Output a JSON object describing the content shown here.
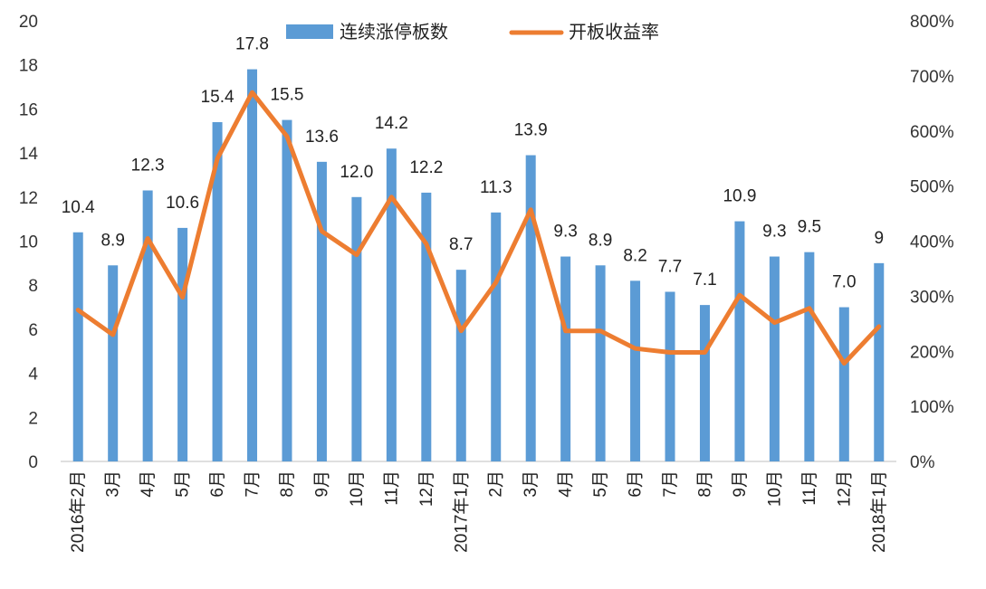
{
  "chart_data": {
    "type": "bar+line",
    "title": "",
    "categories": [
      "2016年2月",
      "3月",
      "4月",
      "5月",
      "6月",
      "7月",
      "8月",
      "9月",
      "10月",
      "11月",
      "12月",
      "2017年1月",
      "2月",
      "3月",
      "4月",
      "5月",
      "6月",
      "7月",
      "8月",
      "9月",
      "10月",
      "11月",
      "12月",
      "2018年1月"
    ],
    "series": [
      {
        "name": "连续涨停板数",
        "type": "bar",
        "axis": "left",
        "color": "#5B9BD5",
        "values": [
          10.4,
          8.9,
          12.3,
          10.6,
          15.4,
          17.8,
          15.5,
          13.6,
          12.0,
          14.2,
          12.2,
          8.7,
          11.3,
          13.9,
          9.3,
          8.9,
          8.2,
          7.7,
          7.1,
          10.9,
          9.3,
          9.5,
          7.0,
          9
        ],
        "labels": [
          "10.4",
          "8.9",
          "12.3",
          "10.6",
          "15.4",
          "17.8",
          "15.5",
          "13.6",
          "12.0",
          "14.2",
          "12.2",
          "8.7",
          "11.3",
          "13.9",
          "9.3",
          "8.9",
          "8.2",
          "7.7",
          "7.1",
          "10.9",
          "9.3",
          "9.5",
          "7.0",
          "9"
        ]
      },
      {
        "name": "开板收益率",
        "type": "line",
        "axis": "right",
        "color": "#ED7D31",
        "values": [
          275,
          230,
          405,
          298,
          550,
          670,
          590,
          418,
          375,
          480,
          395,
          237,
          325,
          457,
          237,
          237,
          205,
          198,
          198,
          302,
          252,
          278,
          178,
          245
        ]
      }
    ],
    "y_left": {
      "min": 0,
      "max": 20,
      "step": 2,
      "ticks": [
        "0",
        "2",
        "4",
        "6",
        "8",
        "10",
        "12",
        "14",
        "16",
        "18",
        "20"
      ]
    },
    "y_right": {
      "min": 0,
      "max": 800,
      "step": 100,
      "ticks": [
        "0%",
        "100%",
        "200%",
        "300%",
        "400%",
        "500%",
        "600%",
        "700%",
        "800%"
      ]
    },
    "legend_position": "top"
  }
}
